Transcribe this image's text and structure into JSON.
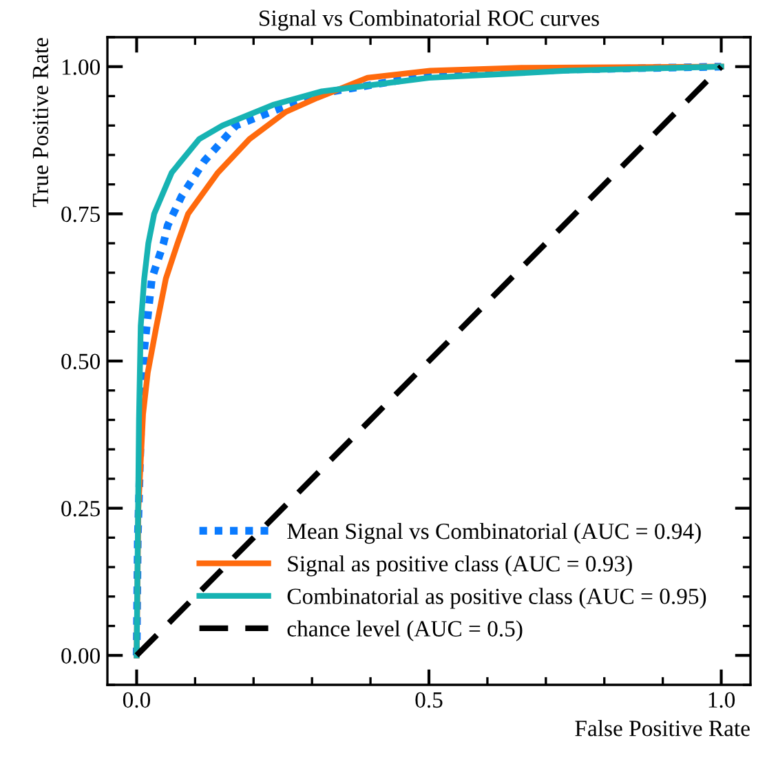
{
  "chart_data": {
    "type": "line",
    "title": "Signal vs Combinatorial ROC curves",
    "xlabel": "False Positive Rate",
    "ylabel": "True Positive Rate",
    "xlim": [
      -0.05,
      1.05
    ],
    "ylim": [
      -0.05,
      1.05
    ],
    "xticks": [
      {
        "value": 0,
        "label": "0.0"
      },
      0.5,
      {
        "value": 1,
        "label": "1.0"
      }
    ],
    "yticks": [
      {
        "value": 0,
        "label": "0.00"
      },
      0.25,
      {
        "value": 0.5,
        "label": "0.50"
      },
      0.75,
      {
        "value": 1,
        "label": "1.00"
      }
    ],
    "grid": false,
    "legend": "bottom right",
    "marker": "none",
    "series": [
      {
        "name": "Mean Signal vs Combinatorial (AUC = 0.94)",
        "color": "#0a7bff",
        "line_style": "dotted",
        "x": [
          0,
          0.002,
          0.007,
          0.013,
          0.026,
          0.046,
          0.053,
          0.077,
          0.116,
          0.17,
          0.247,
          0.317,
          0.5,
          0.735,
          1
        ],
        "values": [
          0,
          0.2,
          0.37,
          0.52,
          0.64,
          0.7,
          0.73,
          0.78,
          0.84,
          0.9,
          0.93,
          0.955,
          0.985,
          0.995,
          1
        ]
      },
      {
        "name": "Signal as positive class (AUC = 0.93)",
        "color": "#ff6a0d",
        "line_style": "solid",
        "x": [
          0,
          0.003,
          0.011,
          0.019,
          0.034,
          0.05,
          0.07,
          0.088,
          0.139,
          0.193,
          0.255,
          0.309,
          0.395,
          0.502,
          0.658,
          1
        ],
        "values": [
          0,
          0.25,
          0.41,
          0.48,
          0.56,
          0.64,
          0.7,
          0.75,
          0.82,
          0.877,
          0.923,
          0.947,
          0.981,
          0.993,
          0.998,
          1
        ]
      },
      {
        "name": "Combinatorial as positive class (AUC = 0.95)",
        "color": "#17b3b3",
        "line_style": "solid",
        "x": [
          0,
          0.002,
          0.004,
          0.007,
          0.013,
          0.02,
          0.03,
          0.06,
          0.107,
          0.147,
          0.233,
          0.317,
          0.5,
          0.735,
          1
        ],
        "values": [
          0,
          0.2,
          0.4,
          0.56,
          0.64,
          0.7,
          0.75,
          0.82,
          0.877,
          0.9,
          0.935,
          0.958,
          0.981,
          0.993,
          1
        ]
      },
      {
        "name": "chance level (AUC = 0.5)",
        "color": "#000000",
        "line_style": "dashed",
        "x": [
          0,
          1
        ],
        "values": [
          0,
          1
        ]
      }
    ]
  }
}
